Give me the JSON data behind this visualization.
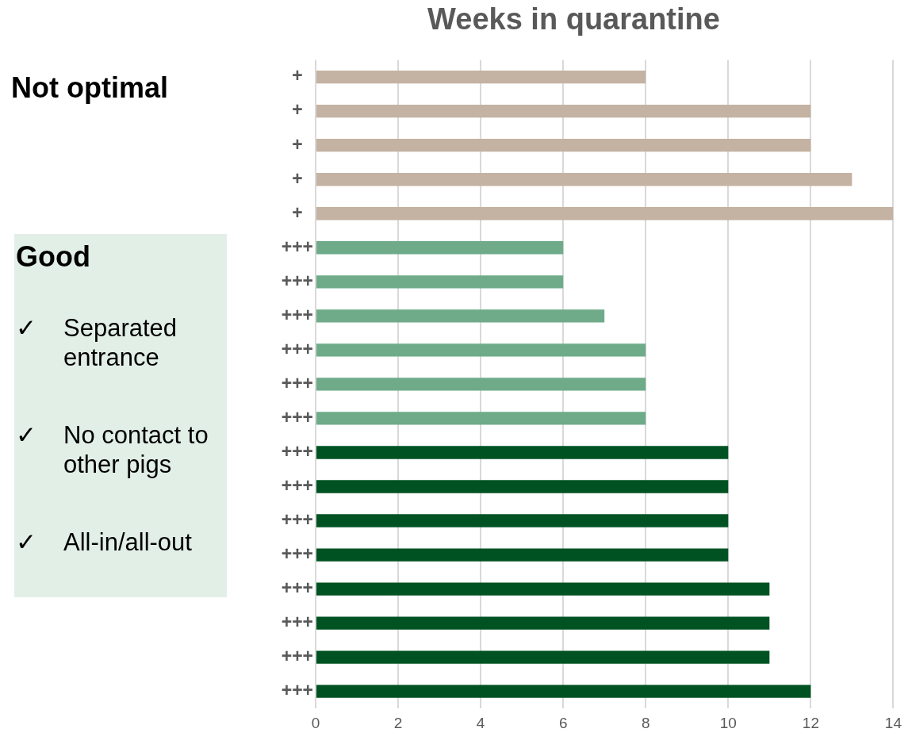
{
  "chart_data": {
    "type": "bar",
    "orientation": "horizontal",
    "title": "Weeks in quarantine",
    "categories": [
      "+",
      "+",
      "+",
      "+",
      "+",
      "+++",
      "+++",
      "+++",
      "+++",
      "+++",
      "+++",
      "+++",
      "+++",
      "+++",
      "+++",
      "+++",
      "+++",
      "+++",
      "+++"
    ],
    "values": [
      8,
      12,
      12,
      13,
      14,
      6,
      6,
      7,
      8,
      8,
      8,
      10,
      10,
      10,
      10,
      11,
      11,
      11,
      12
    ],
    "colors": [
      "#c4b2a2",
      "#c4b2a2",
      "#c4b2a2",
      "#c4b2a2",
      "#c4b2a2",
      "#6fab89",
      "#6fab89",
      "#6fab89",
      "#6fab89",
      "#6fab89",
      "#6fab89",
      "#005222",
      "#005222",
      "#005222",
      "#005222",
      "#005222",
      "#005222",
      "#005222",
      "#005222"
    ],
    "xlim": [
      0,
      14
    ],
    "xticks": [
      0,
      2,
      4,
      6,
      8,
      10,
      12,
      14
    ],
    "grid": "x",
    "legend": false,
    "annotations": [
      "Not optimal",
      "Good",
      "✓ Separated entrance",
      "✓ No contact to other pigs",
      "✓ All-in/all-out"
    ]
  }
}
